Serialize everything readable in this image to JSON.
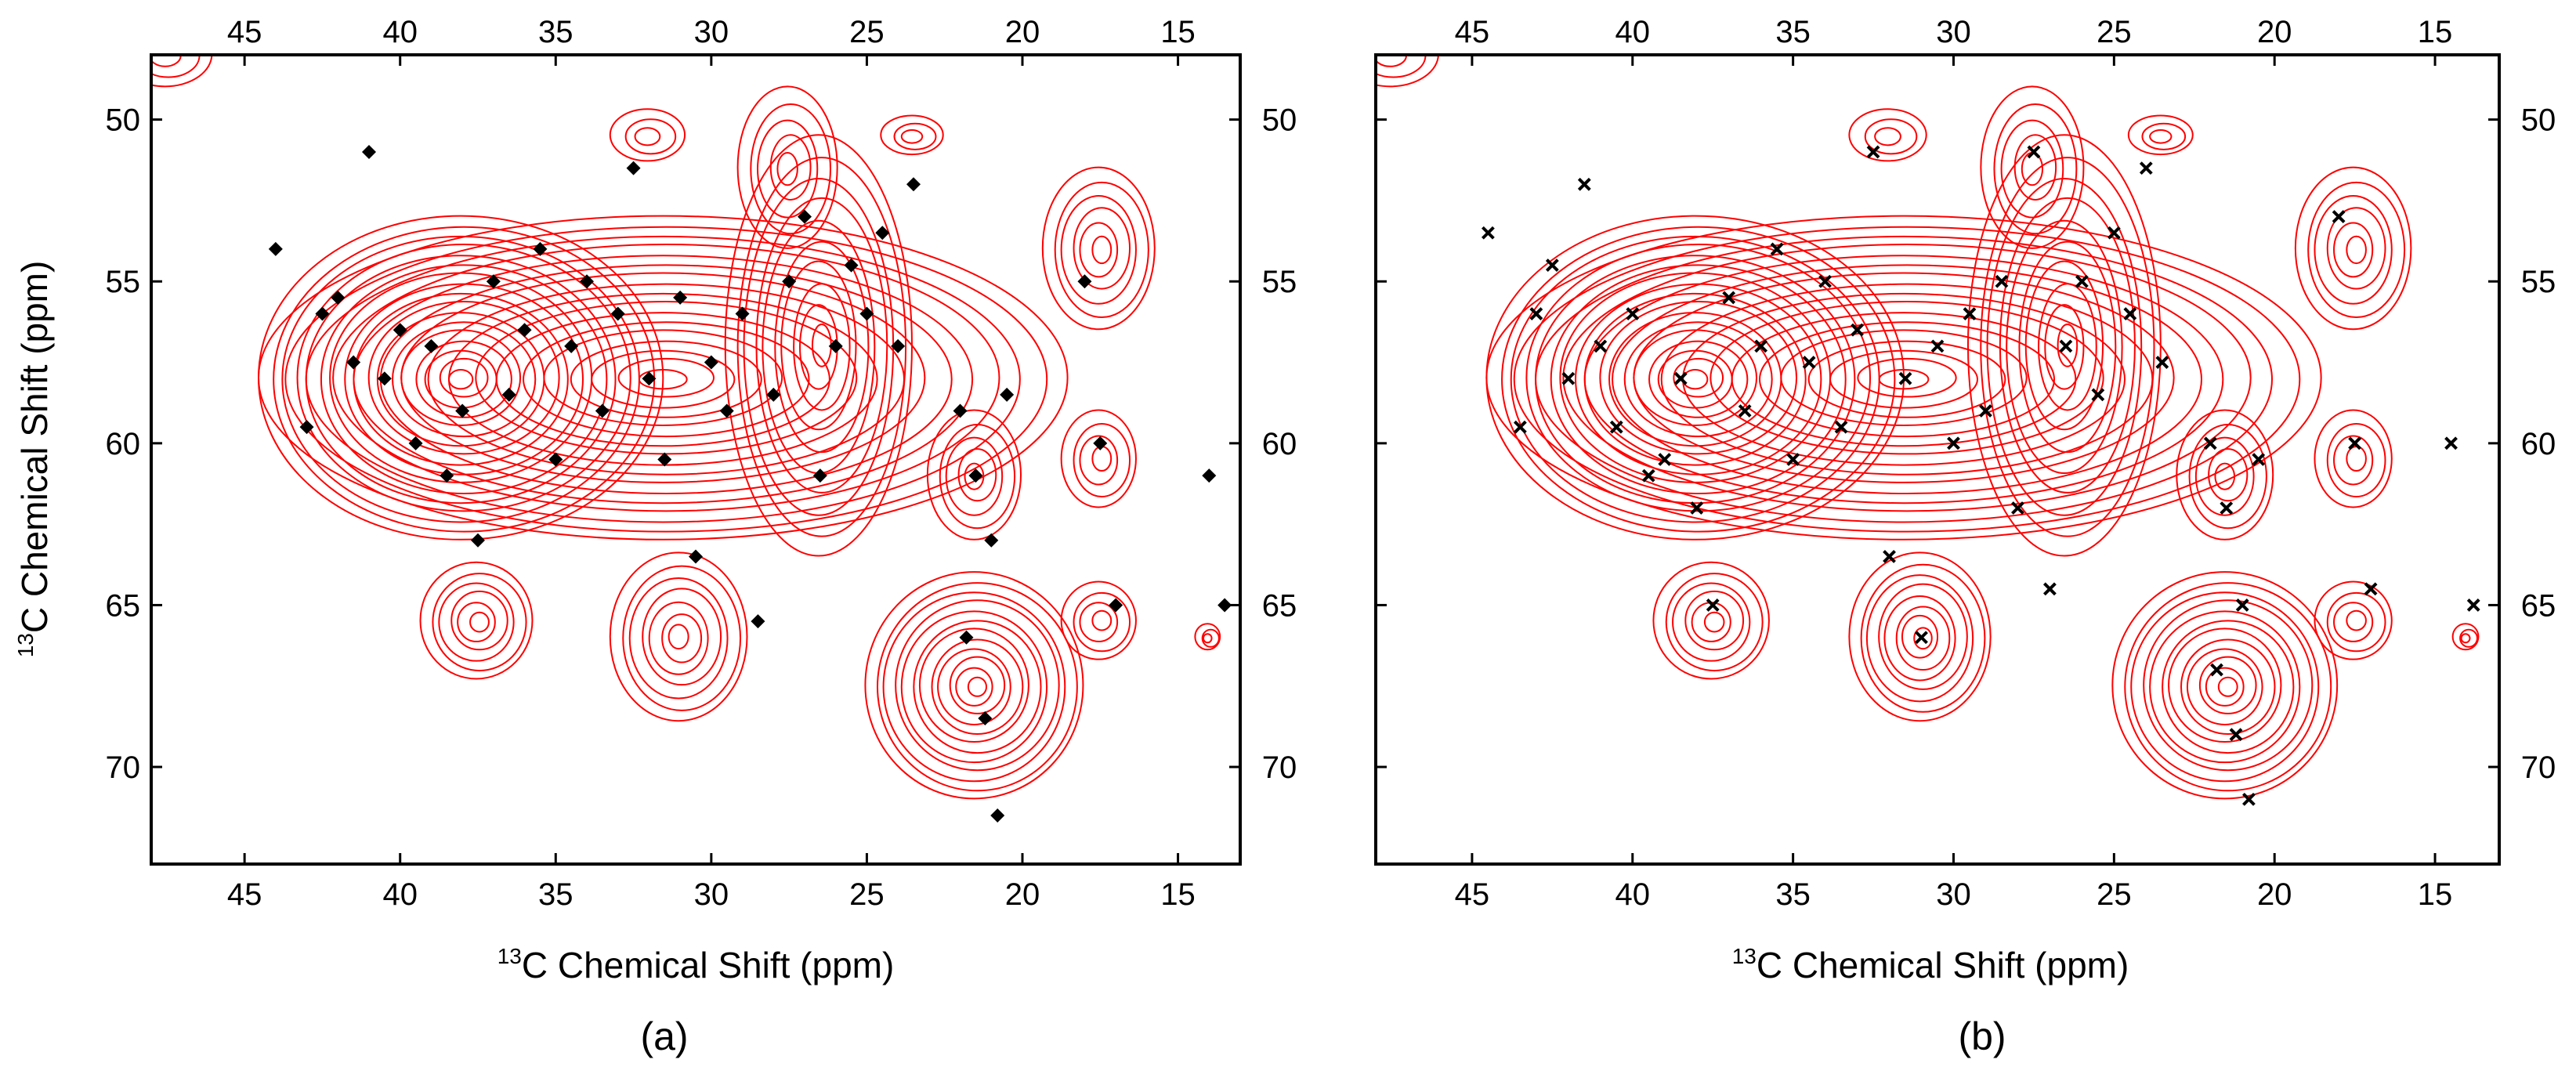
{
  "chart_data": [
    {
      "type": "scatter",
      "panel_label": "(a)",
      "xlabel": "13C Chemical Shift (ppm)",
      "ylabel": "13C Chemical Shift (ppm)",
      "xlim": [
        48,
        13
      ],
      "ylim": [
        48,
        73
      ],
      "x_ticks": [
        45,
        40,
        35,
        30,
        25,
        20,
        15
      ],
      "y_ticks": [
        50,
        55,
        60,
        65,
        70
      ],
      "marker": "diamond",
      "marker_color": "#000000",
      "contour_color": "#ff0000",
      "series": [
        {
          "marker": "diamond",
          "x": [
            44.0,
            43.0,
            42.5,
            42.0,
            41.5,
            41.0,
            40.5,
            40.0,
            39.5,
            39.0,
            38.5,
            38.0,
            37.5,
            37.0,
            36.5,
            36.0,
            35.5,
            35.0,
            34.5,
            34.0,
            33.5,
            33.0,
            32.5,
            32.0,
            31.5,
            31.0,
            30.5,
            30.0,
            29.5,
            29.0,
            28.5,
            28.0,
            27.5,
            27.0,
            26.5,
            26.0,
            25.5,
            25.0,
            24.5,
            24.0,
            23.5,
            22.0,
            21.5,
            21.0,
            20.5,
            21.8,
            21.2,
            20.8,
            18.0,
            17.5,
            17.0,
            14.0,
            13.5
          ],
          "y": [
            54.0,
            59.5,
            56.0,
            55.5,
            57.5,
            51.0,
            58.0,
            56.5,
            60.0,
            57.0,
            61.0,
            59.0,
            63.0,
            55.0,
            58.5,
            56.5,
            54.0,
            60.5,
            57.0,
            55.0,
            59.0,
            56.0,
            51.5,
            58.0,
            60.5,
            55.5,
            63.5,
            57.5,
            59.0,
            56.0,
            65.5,
            58.5,
            55.0,
            53.0,
            61.0,
            57.0,
            54.5,
            56.0,
            53.5,
            57.0,
            52.0,
            59.0,
            61.0,
            63.0,
            58.5,
            66.0,
            68.5,
            71.5,
            55.0,
            60.0,
            65.0,
            61.0,
            65.0
          ]
        }
      ]
    },
    {
      "type": "scatter",
      "panel_label": "(b)",
      "xlabel": "13C Chemical Shift (ppm)",
      "ylabel": "",
      "xlim": [
        48,
        13
      ],
      "ylim": [
        48,
        73
      ],
      "x_ticks": [
        45,
        40,
        35,
        30,
        25,
        20,
        15
      ],
      "y_ticks": [
        50,
        55,
        60,
        65,
        70
      ],
      "marker": "x",
      "marker_color": "#000000",
      "contour_color": "#ff0000",
      "series": [
        {
          "marker": "x",
          "x": [
            44.5,
            43.5,
            43.0,
            42.5,
            42.0,
            41.5,
            41.0,
            40.5,
            40.0,
            39.5,
            39.0,
            38.5,
            38.0,
            37.5,
            37.0,
            36.5,
            36.0,
            35.5,
            35.0,
            34.5,
            34.0,
            33.5,
            33.0,
            32.5,
            32.0,
            31.5,
            31.0,
            30.5,
            30.0,
            29.5,
            29.0,
            28.5,
            28.0,
            27.5,
            27.0,
            26.5,
            26.0,
            25.5,
            25.0,
            24.5,
            24.0,
            23.5,
            22.0,
            21.5,
            21.0,
            20.5,
            21.8,
            21.2,
            20.8,
            18.0,
            17.5,
            17.0,
            14.5,
            13.8
          ],
          "y": [
            53.5,
            59.5,
            56.0,
            54.5,
            58.0,
            52.0,
            57.0,
            59.5,
            56.0,
            61.0,
            60.5,
            58.0,
            62.0,
            65.0,
            55.5,
            59.0,
            57.0,
            54.0,
            60.5,
            57.5,
            55.0,
            59.5,
            56.5,
            51.0,
            63.5,
            58.0,
            66.0,
            57.0,
            60.0,
            56.0,
            59.0,
            55.0,
            62.0,
            51.0,
            64.5,
            57.0,
            55.0,
            58.5,
            53.5,
            56.0,
            51.5,
            57.5,
            60.0,
            62.0,
            65.0,
            60.5,
            67.0,
            69.0,
            71.0,
            53.0,
            60.0,
            64.5,
            60.0,
            65.0
          ]
        }
      ]
    }
  ]
}
